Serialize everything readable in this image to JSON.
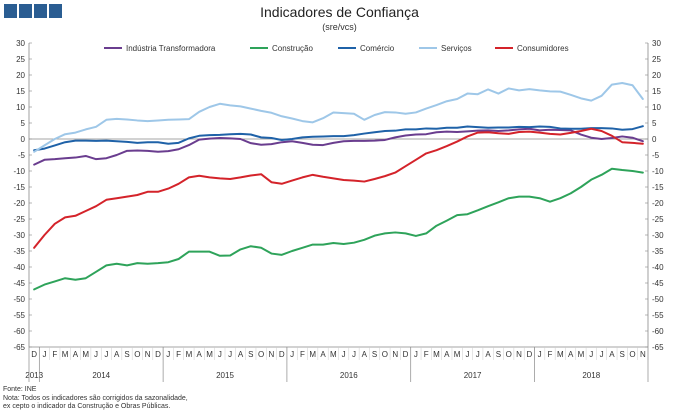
{
  "title": "Indicadores de Confiança",
  "subtitle": "(sre/vcs)",
  "source": "Fonte: INE",
  "note_line1": "Nota: Todos os indicadores são corrigidos da sazonalidade,",
  "note_line2": "ex cepto o indicador da Construção e Obras Públicas.",
  "colors": {
    "industria": "#6a3d8f",
    "construcao": "#2ea35a",
    "comercio": "#1f62a8",
    "servicos": "#9ec7e8",
    "consumidores": "#d4232a"
  },
  "chart_data": {
    "type": "line",
    "ylim": [
      -65,
      30
    ],
    "yticks": [
      30,
      25,
      20,
      15,
      10,
      5,
      0,
      -5,
      -10,
      -15,
      -20,
      -25,
      -30,
      -35,
      -40,
      -45,
      -50,
      -55,
      -60,
      -65
    ],
    "grid": false,
    "legend_position": "top",
    "categories": [
      "D",
      "J",
      "F",
      "M",
      "A",
      "M",
      "J",
      "J",
      "A",
      "S",
      "O",
      "N",
      "D",
      "J",
      "F",
      "M",
      "A",
      "M",
      "J",
      "J",
      "A",
      "S",
      "O",
      "N",
      "D",
      "J",
      "F",
      "M",
      "A",
      "M",
      "J",
      "J",
      "A",
      "S",
      "O",
      "N",
      "D",
      "J",
      "F",
      "M",
      "A",
      "M",
      "J",
      "J",
      "A",
      "S",
      "O",
      "N",
      "D",
      "J",
      "F",
      "M",
      "A",
      "M",
      "J",
      "J",
      "A",
      "S",
      "O",
      "N"
    ],
    "years": [
      {
        "label": "2013",
        "start": 0,
        "end": 0
      },
      {
        "label": "2014",
        "start": 1,
        "end": 12
      },
      {
        "label": "2015",
        "start": 13,
        "end": 24
      },
      {
        "label": "2016",
        "start": 25,
        "end": 36
      },
      {
        "label": "2017",
        "start": 37,
        "end": 48
      },
      {
        "label": "2018",
        "start": 49,
        "end": 59
      }
    ],
    "series": [
      {
        "name": "Indústria Transformadora",
        "color_key": "industria",
        "values": [
          -8,
          -6.5,
          -6.3,
          -6,
          -5.8,
          -5.3,
          -6.3,
          -6,
          -5,
          -3.7,
          -3.6,
          -3.7,
          -4,
          -3.8,
          -3.2,
          -1.9,
          -0.2,
          0.1,
          0.3,
          0.2,
          0,
          -1.3,
          -1.8,
          -1.6,
          -1,
          -0.7,
          -1.2,
          -1.8,
          -1.9,
          -1.2,
          -0.7,
          -0.6,
          -0.6,
          -0.5,
          -0.3,
          0.5,
          1.1,
          1.4,
          1.5,
          2.1,
          2.3,
          2.2,
          2.4,
          2.6,
          2.7,
          2.5,
          2.7,
          3,
          3.2,
          2.7,
          2.9,
          2.8,
          2.7,
          1.4,
          0.4,
          0,
          0.3,
          0.8,
          0.4,
          -0.7
        ]
      },
      {
        "name": "Construção",
        "color_key": "construcao",
        "values": [
          -47,
          -45.5,
          -44.5,
          -43.5,
          -44,
          -43.5,
          -41.5,
          -39.5,
          -39,
          -39.5,
          -38.8,
          -39,
          -38.8,
          -38.5,
          -37.5,
          -35.2,
          -35.2,
          -35.2,
          -36.5,
          -36.4,
          -34.5,
          -33.5,
          -34,
          -35.8,
          -36.2,
          -35,
          -34,
          -33,
          -33,
          -32.5,
          -32.8,
          -32.4,
          -31.5,
          -30.2,
          -29.5,
          -29.2,
          -29.5,
          -30.3,
          -29.5,
          -27.1,
          -25.5,
          -23.8,
          -23.5,
          -22.3,
          -21,
          -19.8,
          -18.5,
          -18,
          -18,
          -18.5,
          -19.6,
          -18.5,
          -17,
          -15,
          -12.7,
          -11.2,
          -9.3,
          -9.7,
          -10,
          -10.5
        ]
      },
      {
        "name": "Comércio",
        "color_key": "comercio",
        "values": [
          -3.5,
          -3,
          -2,
          -1,
          -0.5,
          -0.5,
          -0.6,
          -0.5,
          -0.7,
          -0.9,
          -1.2,
          -1,
          -1,
          -1.5,
          -1.2,
          0.2,
          1,
          1.2,
          1.3,
          1.5,
          1.6,
          1.4,
          0.5,
          0.3,
          -0.3,
          0,
          0.5,
          0.7,
          0.8,
          0.9,
          0.9,
          1.2,
          1.7,
          2.1,
          2.5,
          2.6,
          3,
          3,
          3.3,
          3.2,
          3.5,
          3.5,
          3.9,
          3.7,
          3.5,
          3.6,
          3.6,
          3.8,
          3.7,
          3.9,
          3.8,
          3.3,
          3.2,
          3.2,
          3.4,
          3.4,
          3.3,
          2.9,
          3.1,
          4
        ]
      },
      {
        "name": "Serviços",
        "color_key": "servicos",
        "values": [
          -4,
          -2,
          0,
          1.5,
          2,
          3,
          3.8,
          6,
          6.3,
          6.1,
          5.8,
          5.6,
          5.8,
          6,
          6.1,
          6.2,
          8.5,
          10,
          11,
          10.5,
          10.2,
          9.5,
          8.8,
          8.2,
          7.1,
          6.4,
          5.6,
          5.2,
          6.5,
          8.3,
          8.1,
          7.9,
          6,
          7.5,
          8.4,
          8.3,
          7.9,
          8.3,
          9.5,
          10.6,
          11.8,
          12.5,
          14.2,
          14,
          15.5,
          14.2,
          15.8,
          15.2,
          15.6,
          15.2,
          14.9,
          14.8,
          13.8,
          12.7,
          12,
          13.5,
          17,
          17.5,
          16.8,
          12.5
        ]
      },
      {
        "name": "Consumidores",
        "color_key": "consumidores",
        "values": [
          -34,
          -30,
          -26.5,
          -24.5,
          -24,
          -22.5,
          -21,
          -19,
          -18.5,
          -18,
          -17.5,
          -16.5,
          -16.5,
          -15.5,
          -14,
          -12,
          -11.5,
          -12,
          -12.3,
          -12.5,
          -12,
          -11.4,
          -11,
          -13.5,
          -14,
          -13,
          -12,
          -11.2,
          -11.8,
          -12.3,
          -12.8,
          -13,
          -13.3,
          -12.5,
          -11.6,
          -10.5,
          -8.5,
          -6.5,
          -4.5,
          -3.5,
          -2.2,
          -0.8,
          0.8,
          2,
          2.1,
          1.8,
          1.6,
          2.2,
          2.3,
          2,
          1.6,
          1.4,
          1.9,
          2.5,
          3.2,
          2.5,
          1,
          -1,
          -1.2,
          -1.5
        ]
      }
    ]
  }
}
